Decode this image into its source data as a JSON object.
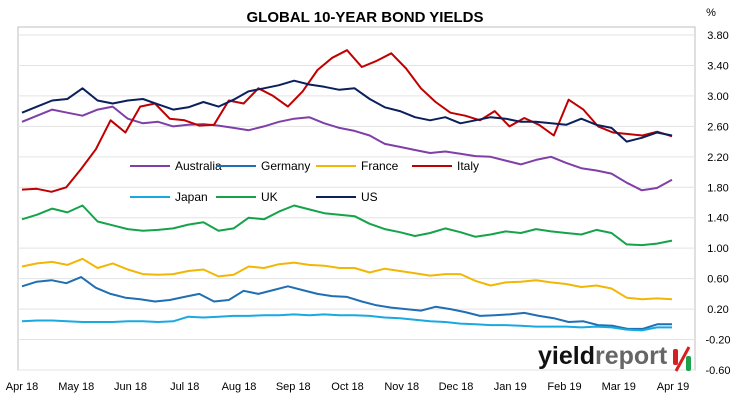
{
  "chart_data": {
    "type": "line",
    "title": "GLOBAL 10-YEAR BOND YIELDS",
    "y_unit": "%",
    "ylim": [
      -0.6,
      3.8
    ],
    "y_ticks": [
      "3.80",
      "3.40",
      "3.00",
      "2.60",
      "2.20",
      "1.80",
      "1.40",
      "1.00",
      "0.60",
      "0.20",
      "-0.20",
      "-0.60"
    ],
    "x_ticks": [
      "Apr 18",
      "May 18",
      "Jun 18",
      "Jul 18",
      "Aug 18",
      "Sep 18",
      "Oct 18",
      "Nov 18",
      "Dec 18",
      "Jan 19",
      "Feb 19",
      "Mar 19",
      "Apr 19"
    ],
    "grid": true,
    "legend_position": "inside-upper-left",
    "series": [
      {
        "name": "Australia",
        "color": "#7f3fa8",
        "values": [
          2.66,
          2.74,
          2.82,
          2.78,
          2.74,
          2.82,
          2.86,
          2.7,
          2.64,
          2.66,
          2.6,
          2.62,
          2.63,
          2.61,
          2.58,
          2.55,
          2.6,
          2.66,
          2.7,
          2.72,
          2.64,
          2.58,
          2.54,
          2.48,
          2.37,
          2.33,
          2.29,
          2.25,
          2.27,
          2.24,
          2.21,
          2.2,
          2.15,
          2.1,
          2.16,
          2.2,
          2.12,
          2.05,
          2.02,
          1.98,
          1.86,
          1.76,
          1.79,
          1.9
        ]
      },
      {
        "name": "Germany",
        "color": "#1f6fb2",
        "values": [
          0.5,
          0.56,
          0.58,
          0.54,
          0.62,
          0.48,
          0.4,
          0.35,
          0.33,
          0.3,
          0.32,
          0.36,
          0.4,
          0.3,
          0.32,
          0.44,
          0.4,
          0.45,
          0.5,
          0.45,
          0.4,
          0.37,
          0.36,
          0.3,
          0.25,
          0.22,
          0.2,
          0.18,
          0.23,
          0.2,
          0.16,
          0.11,
          0.12,
          0.13,
          0.15,
          0.11,
          0.08,
          0.03,
          0.04,
          -0.01,
          -0.02,
          -0.06,
          -0.06,
          0.0,
          0.0
        ]
      },
      {
        "name": "France",
        "color": "#f2b705",
        "values": [
          0.76,
          0.8,
          0.82,
          0.78,
          0.86,
          0.74,
          0.8,
          0.72,
          0.66,
          0.65,
          0.66,
          0.7,
          0.72,
          0.63,
          0.65,
          0.76,
          0.74,
          0.79,
          0.81,
          0.78,
          0.77,
          0.74,
          0.74,
          0.68,
          0.73,
          0.7,
          0.67,
          0.64,
          0.66,
          0.66,
          0.57,
          0.51,
          0.55,
          0.56,
          0.58,
          0.55,
          0.53,
          0.49,
          0.51,
          0.47,
          0.35,
          0.33,
          0.34,
          0.33
        ]
      },
      {
        "name": "Italy",
        "color": "#c00000",
        "values": [
          1.77,
          1.78,
          1.74,
          1.8,
          2.04,
          2.3,
          2.68,
          2.52,
          2.86,
          2.9,
          2.7,
          2.68,
          2.61,
          2.62,
          2.94,
          2.9,
          3.1,
          3.0,
          2.86,
          3.06,
          3.34,
          3.5,
          3.6,
          3.38,
          3.46,
          3.56,
          3.36,
          3.1,
          2.92,
          2.78,
          2.74,
          2.68,
          2.8,
          2.6,
          2.71,
          2.62,
          2.48,
          2.95,
          2.82,
          2.6,
          2.52,
          2.5,
          2.48,
          2.53,
          2.47
        ]
      },
      {
        "name": "Japan",
        "color": "#19a9e1",
        "values": [
          0.04,
          0.05,
          0.05,
          0.04,
          0.03,
          0.03,
          0.03,
          0.04,
          0.04,
          0.03,
          0.04,
          0.1,
          0.09,
          0.1,
          0.11,
          0.11,
          0.12,
          0.12,
          0.13,
          0.12,
          0.13,
          0.12,
          0.12,
          0.11,
          0.09,
          0.08,
          0.06,
          0.04,
          0.03,
          0.01,
          0.0,
          -0.01,
          -0.01,
          -0.02,
          -0.03,
          -0.03,
          -0.03,
          -0.04,
          -0.03,
          -0.04,
          -0.07,
          -0.08,
          -0.04,
          -0.04
        ]
      },
      {
        "name": "UK",
        "color": "#15a34a",
        "values": [
          1.38,
          1.44,
          1.52,
          1.47,
          1.56,
          1.35,
          1.3,
          1.25,
          1.23,
          1.24,
          1.26,
          1.31,
          1.34,
          1.23,
          1.26,
          1.4,
          1.38,
          1.48,
          1.56,
          1.51,
          1.46,
          1.44,
          1.42,
          1.32,
          1.25,
          1.21,
          1.16,
          1.2,
          1.26,
          1.21,
          1.15,
          1.18,
          1.22,
          1.2,
          1.25,
          1.22,
          1.2,
          1.18,
          1.24,
          1.2,
          1.05,
          1.04,
          1.06,
          1.1
        ]
      },
      {
        "name": "US",
        "color": "#0b1f5c",
        "values": [
          2.78,
          2.86,
          2.94,
          2.96,
          3.1,
          2.94,
          2.9,
          2.94,
          2.96,
          2.89,
          2.82,
          2.85,
          2.92,
          2.86,
          2.95,
          3.06,
          3.1,
          3.14,
          3.2,
          3.15,
          3.12,
          3.08,
          3.1,
          2.96,
          2.85,
          2.8,
          2.72,
          2.68,
          2.72,
          2.64,
          2.68,
          2.72,
          2.7,
          2.66,
          2.66,
          2.64,
          2.62,
          2.7,
          2.62,
          2.58,
          2.4,
          2.45,
          2.52,
          2.48
        ]
      }
    ]
  },
  "legend": {
    "australia": "Australia",
    "germany": "Germany",
    "france": "France",
    "italy": "Italy",
    "japan": "Japan",
    "uk": "UK",
    "us": "US"
  },
  "logo": {
    "word_dark": "yield",
    "word_light": "report",
    "percent_glyph": "%",
    "dark_color": "#111111",
    "light_color": "#666666",
    "percent_top_color": "#d42020",
    "percent_bottom_color": "#1aa34a"
  }
}
